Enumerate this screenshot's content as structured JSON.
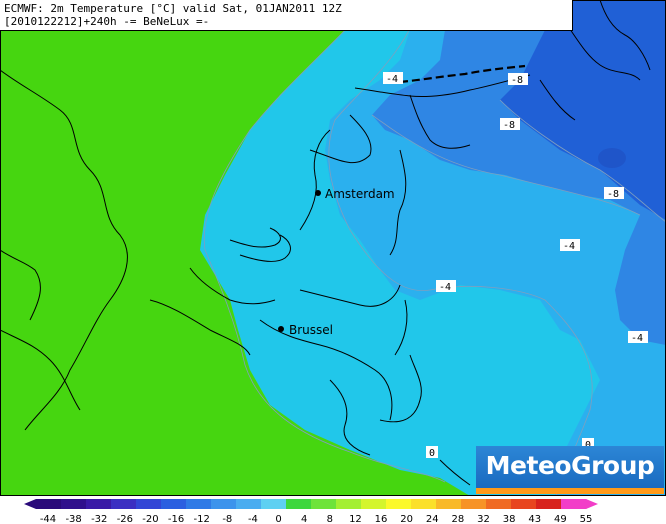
{
  "header": {
    "line1": "ECMWF: 2m Temperature [°C] valid Sat, 01JAN2011 12Z",
    "line2": "[2010122212]+240h -= BeNeLux =-"
  },
  "cities": [
    {
      "name": "Amsterdam"
    },
    {
      "name": "Brussel"
    }
  ],
  "contour_labels": [
    "-4",
    "-8",
    "-8",
    "-8",
    "-4",
    "-4",
    "-4",
    "0",
    "0"
  ],
  "logo": {
    "text": "MeteoGroup"
  },
  "colorbar": {
    "labels": [
      "-44",
      "-38",
      "-32",
      "-26",
      "-20",
      "-16",
      "-12",
      "-8",
      "-4",
      "0",
      "4",
      "8",
      "12",
      "16",
      "20",
      "24",
      "28",
      "32",
      "38",
      "43",
      "49",
      "55"
    ],
    "colors": [
      "#2a0a7a",
      "#30108c",
      "#3a1aa6",
      "#3b2fc2",
      "#3346d6",
      "#2b5fe0",
      "#2f7ae6",
      "#3c93ec",
      "#4aacf0",
      "#5ed0f2",
      "#3ed73e",
      "#6ee33a",
      "#a4ef32",
      "#d4f52c",
      "#fbf92a",
      "#fbe02a",
      "#f9b928",
      "#f79326",
      "#f06a22",
      "#e8451e",
      "#d8221c",
      "#f23ec8"
    ]
  },
  "colors": {
    "land_green": "#46d610",
    "cold_1": "#21c7ea",
    "cold_2": "#2bb0ee",
    "cold_3": "#2f86e4",
    "cold_4": "#2060d6"
  }
}
